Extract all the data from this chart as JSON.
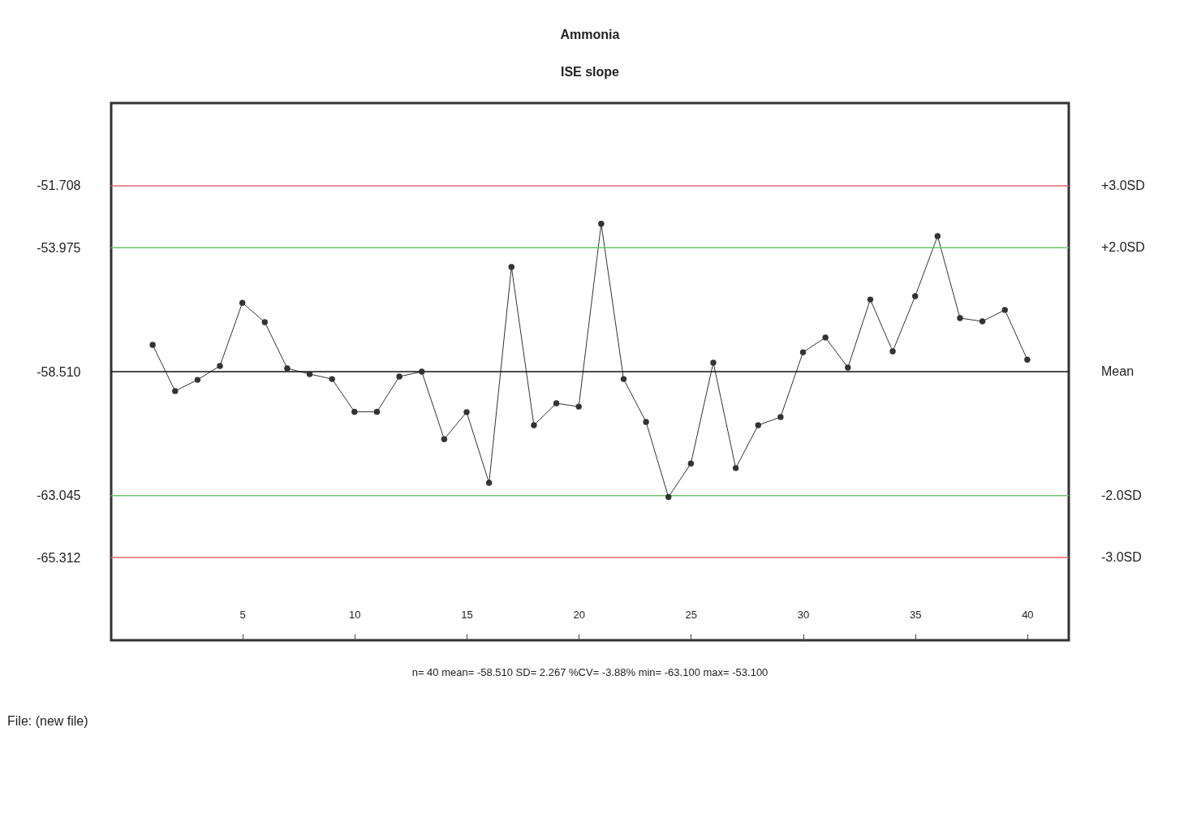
{
  "chart_data": {
    "type": "line",
    "title": "Ammonia",
    "subtitle": "ISE slope",
    "x": [
      1,
      2,
      3,
      4,
      5,
      6,
      7,
      8,
      9,
      10,
      11,
      12,
      13,
      14,
      15,
      16,
      17,
      18,
      19,
      20,
      21,
      22,
      23,
      24,
      25,
      26,
      27,
      28,
      29,
      30,
      31,
      32,
      33,
      34,
      35,
      36,
      37,
      38,
      39,
      40
    ],
    "series": [
      {
        "color": "#333333",
        "values": [
          -57.53,
          -59.22,
          -58.81,
          -58.3,
          -55.99,
          -56.7,
          -58.39,
          -58.6,
          -58.78,
          -59.98,
          -59.98,
          -58.69,
          -58.51,
          -60.98,
          -59.99,
          -62.58,
          -54.68,
          -60.47,
          -59.67,
          -59.79,
          -53.1,
          -58.78,
          -60.35,
          -63.1,
          -61.87,
          -58.18,
          -62.04,
          -60.47,
          -60.17,
          -57.8,
          -57.26,
          -58.36,
          -55.87,
          -57.77,
          -55.75,
          -53.55,
          -56.55,
          -56.67,
          -56.25,
          -58.07
        ]
      }
    ],
    "xlim": [
      -0.85,
      41.85
    ],
    "xticks": [
      5,
      10,
      15,
      20,
      25,
      30,
      35,
      40
    ],
    "ylim": [
      -68.34,
      -48.68
    ],
    "yticks": [
      {
        "value": -51.708,
        "label": "-51.708"
      },
      {
        "value": -53.975,
        "label": "-53.975"
      },
      {
        "value": -58.51,
        "label": "-58.510"
      },
      {
        "value": -63.045,
        "label": "-63.045"
      },
      {
        "value": -65.312,
        "label": "-65.312"
      }
    ],
    "ref_lines": [
      {
        "axis": "y",
        "value": -51.708,
        "label": "+3.0SD",
        "color": "#e8646e"
      },
      {
        "axis": "y",
        "value": -53.975,
        "label": "+2.0SD",
        "color": "#6cc46c"
      },
      {
        "axis": "y",
        "value": -58.51,
        "label": "Mean",
        "color": "#111111"
      },
      {
        "axis": "y",
        "value": -63.045,
        "label": "-2.0SD",
        "color": "#6cc46c"
      },
      {
        "axis": "y",
        "value": -65.312,
        "label": "-3.0SD",
        "color": "#e8646e"
      }
    ],
    "annotations": [
      "n= 40   mean= -58.510   SD= 2.267   %CV= -3.88%   min= -63.100   max= -53.100",
      "File:  (new file)"
    ],
    "marker": "circle",
    "line_style": "solid",
    "grid": false
  }
}
